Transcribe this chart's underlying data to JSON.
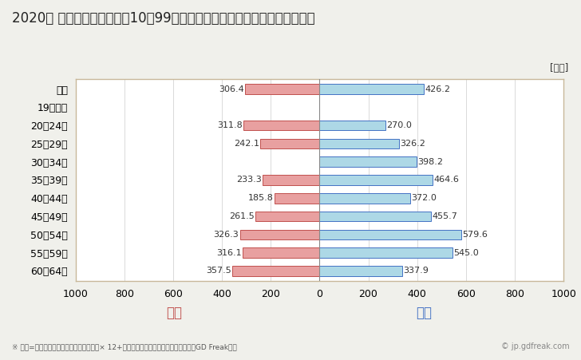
{
  "title": "2020年 民間企業（従業者数10〜99人）フルタイム労働者の男女別平均年収",
  "ylabel_unit": "[万円]",
  "categories": [
    "全体",
    "19歳以下",
    "20〜24歳",
    "25〜29歳",
    "30〜34歳",
    "35〜39歳",
    "40〜44歳",
    "45〜49歳",
    "50〜54歳",
    "55〜59歳",
    "60〜64歳"
  ],
  "female_values": [
    306.4,
    0,
    311.8,
    242.1,
    0,
    233.3,
    185.8,
    261.5,
    326.3,
    316.1,
    357.5
  ],
  "male_values": [
    426.2,
    0,
    270.0,
    326.2,
    398.2,
    464.6,
    372.0,
    455.7,
    579.6,
    545.0,
    337.9
  ],
  "female_color": "#e8a0a0",
  "female_edge_color": "#c0504d",
  "male_color": "#add8e6",
  "male_edge_color": "#4472c4",
  "xlim": 1000,
  "female_label": "女性",
  "male_label": "男性",
  "female_label_color": "#c0504d",
  "male_label_color": "#4472c4",
  "footnote": "※ 年収=「きまって支給する現金給与額」× 12+「年間賞与その他特別給与額」としてGD Freak推計",
  "watermark": "© jp.gdfreak.com",
  "background_color": "#f0f0eb",
  "plot_background_color": "#ffffff",
  "border_color": "#c8b89a",
  "title_fontsize": 12,
  "tick_fontsize": 9,
  "label_fontsize": 8,
  "bar_height": 0.55
}
